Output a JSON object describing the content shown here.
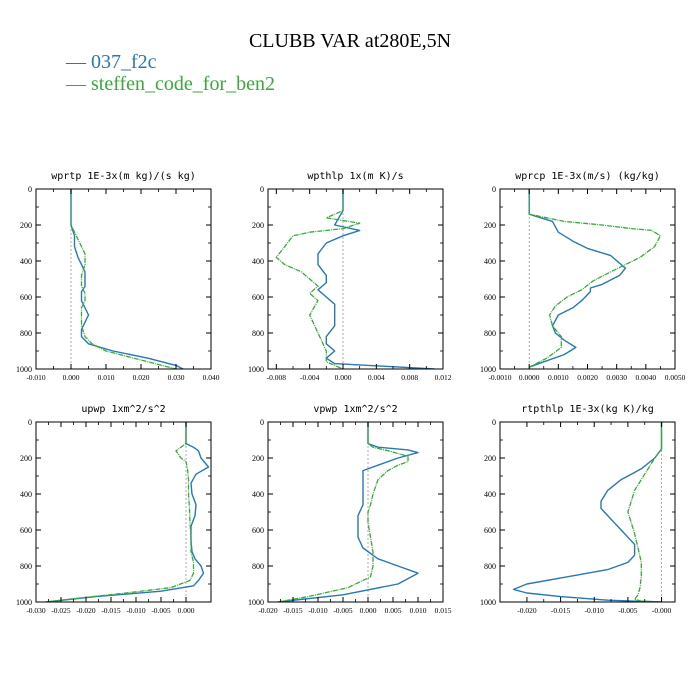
{
  "figure": {
    "title": "CLUBB VAR at280E,5N",
    "legend": [
      {
        "label": "037_f2c",
        "color": "#2878b4"
      },
      {
        "label": "steffen_code_for_ben2",
        "color": "#3aa83a"
      }
    ]
  },
  "chart_data": [
    {
      "type": "line",
      "title": "wprtp  1E-3x(m kg)/(s kg)",
      "xlim": [
        -0.01,
        0.04
      ],
      "ylim": [
        1000,
        0
      ],
      "xticks": [
        "-0.010",
        "0.000",
        "0.010",
        "0.020",
        "0.030",
        "0.040"
      ],
      "xtick_values": [
        -0.01,
        0.0,
        0.01,
        0.02,
        0.03,
        0.04
      ],
      "yticks": [
        0,
        200,
        400,
        600,
        800,
        1000
      ],
      "series": [
        {
          "name": "037_f2c",
          "color": "#2878b4",
          "x": [
            0.0,
            0.0,
            0.0,
            0.001,
            0.001,
            0.002,
            0.003,
            0.004,
            0.004,
            0.004,
            0.003,
            0.003,
            0.004,
            0.005,
            0.004,
            0.003,
            0.003,
            0.005,
            0.012,
            0.022,
            0.03,
            0.032
          ],
          "y": [
            0,
            140,
            200,
            260,
            320,
            380,
            420,
            460,
            500,
            540,
            570,
            620,
            660,
            700,
            740,
            780,
            820,
            860,
            900,
            940,
            980,
            1000
          ]
        },
        {
          "name": "steffen_code_for_ben2",
          "color": "#3aa83a",
          "x": [
            0.0,
            0.0,
            0.0,
            0.001,
            0.002,
            0.003,
            0.004,
            0.004,
            0.003,
            0.003,
            0.004,
            0.004,
            0.003,
            0.003,
            0.003,
            0.004,
            0.006,
            0.01,
            0.018,
            0.026,
            0.03
          ],
          "y": [
            0,
            140,
            200,
            240,
            280,
            320,
            360,
            420,
            480,
            540,
            580,
            620,
            660,
            700,
            760,
            820,
            860,
            900,
            940,
            980,
            1000
          ]
        }
      ]
    },
    {
      "type": "line",
      "title": "wpthlp  1x(m K)/s",
      "xlim": [
        -0.009,
        0.012
      ],
      "ylim": [
        1000,
        0
      ],
      "xticks": [
        "-0.008",
        "-0.004",
        "0.000",
        "0.004",
        "0.008",
        "0.012"
      ],
      "xtick_values": [
        -0.008,
        -0.004,
        0.0,
        0.004,
        0.008,
        0.012
      ],
      "yticks": [
        0,
        200,
        400,
        600,
        800,
        1000
      ],
      "series": [
        {
          "name": "037_f2c",
          "color": "#2878b4",
          "x": [
            0.0,
            0.0,
            0.0,
            -0.0005,
            -0.001,
            0.002,
            0.0,
            -0.002,
            -0.003,
            -0.003,
            -0.002,
            -0.002,
            -0.003,
            -0.002,
            -0.001,
            -0.001,
            -0.001,
            -0.002,
            -0.002,
            -0.001,
            -0.002,
            -0.001,
            0.011
          ],
          "y": [
            0,
            100,
            120,
            160,
            200,
            230,
            260,
            300,
            360,
            420,
            480,
            520,
            560,
            600,
            640,
            700,
            760,
            820,
            860,
            900,
            940,
            970,
            1000
          ]
        },
        {
          "name": "steffen_code_for_ben2",
          "color": "#3aa83a",
          "x": [
            0.0,
            0.0,
            -0.001,
            -0.002,
            0.0,
            0.002,
            0.0,
            -0.004,
            -0.006,
            -0.007,
            -0.008,
            -0.007,
            -0.005,
            -0.004,
            -0.003,
            -0.004,
            -0.003,
            -0.004,
            -0.003,
            -0.002,
            -0.002,
            0.0
          ],
          "y": [
            0,
            120,
            140,
            160,
            175,
            190,
            220,
            240,
            260,
            320,
            380,
            420,
            460,
            500,
            540,
            580,
            620,
            700,
            800,
            900,
            960,
            1000
          ]
        }
      ]
    },
    {
      "type": "line",
      "title": "wprcp  1E-3x(m/s) (kg/kg)",
      "xlim": [
        -0.001,
        0.005
      ],
      "ylim": [
        1000,
        0
      ],
      "xticks": [
        "-0.0010",
        "0.0000",
        "0.0010",
        "0.0020",
        "0.0030",
        "0.0040",
        "0.0050"
      ],
      "xtick_values": [
        -0.001,
        0.0,
        0.001,
        0.002,
        0.003,
        0.004,
        0.005
      ],
      "yticks": [
        0,
        200,
        400,
        600,
        800,
        1000
      ],
      "series": [
        {
          "name": "037_f2c",
          "color": "#2878b4",
          "x": [
            0.0,
            0.0,
            0.0,
            0.0008,
            0.001,
            0.0015,
            0.002,
            0.0028,
            0.0033,
            0.0031,
            0.0025,
            0.0021,
            0.0021,
            0.0018,
            0.0015,
            0.001,
            0.0008,
            0.0009,
            0.0012,
            0.0016,
            0.0012,
            0.0005,
            0.0
          ],
          "y": [
            0,
            100,
            140,
            180,
            240,
            290,
            330,
            370,
            440,
            480,
            530,
            550,
            570,
            620,
            660,
            700,
            760,
            800,
            840,
            880,
            920,
            960,
            990
          ]
        },
        {
          "name": "steffen_code_for_ben2",
          "color": "#3aa83a",
          "x": [
            0.0,
            0.0,
            0.0,
            0.0012,
            0.0025,
            0.0035,
            0.0042,
            0.0045,
            0.0043,
            0.0038,
            0.0033,
            0.0028,
            0.0022,
            0.0018,
            0.0013,
            0.0009,
            0.0007,
            0.0008,
            0.0011,
            0.0011,
            0.0006,
            0.0
          ],
          "y": [
            0,
            100,
            140,
            180,
            200,
            220,
            230,
            260,
            320,
            380,
            420,
            460,
            510,
            560,
            600,
            650,
            700,
            760,
            820,
            880,
            940,
            990
          ]
        }
      ]
    },
    {
      "type": "line",
      "title": "upwp  1xm^2/s^2",
      "xlim": [
        -0.03,
        0.005
      ],
      "ylim": [
        1000,
        0
      ],
      "xticks": [
        "-0.030",
        "-0.025",
        "-0.020",
        "-0.015",
        "-0.010",
        "-0.005",
        "0.000"
      ],
      "xtick_values": [
        -0.03,
        -0.025,
        -0.02,
        -0.015,
        -0.01,
        -0.005,
        0.0
      ],
      "yticks": [
        0,
        200,
        400,
        600,
        800,
        1000
      ],
      "series": [
        {
          "name": "037_f2c",
          "color": "#2878b4",
          "x": [
            0.0,
            0.0,
            0.0015,
            0.0025,
            0.003,
            0.0045,
            0.002,
            0.001,
            0.0012,
            0.002,
            0.0018,
            0.001,
            0.001,
            0.0012,
            0.0018,
            0.003,
            0.0035,
            0.0025,
            0.0015,
            -0.005,
            -0.018,
            -0.028
          ],
          "y": [
            0,
            120,
            140,
            160,
            200,
            250,
            290,
            340,
            400,
            460,
            520,
            580,
            660,
            720,
            760,
            800,
            840,
            880,
            910,
            940,
            970,
            1000
          ]
        },
        {
          "name": "steffen_code_for_ben2",
          "color": "#3aa83a",
          "x": [
            0.0,
            0.0,
            -0.001,
            -0.002,
            -0.001,
            0.0,
            0.0003,
            0.0005,
            0.0005,
            0.0007,
            0.0008,
            0.001,
            0.001,
            0.0015,
            0.0015,
            0.0008,
            -0.003,
            -0.012,
            -0.022,
            -0.028
          ],
          "y": [
            0,
            120,
            140,
            160,
            200,
            220,
            260,
            320,
            400,
            480,
            560,
            640,
            720,
            780,
            840,
            880,
            920,
            950,
            980,
            1000
          ]
        }
      ]
    },
    {
      "type": "line",
      "title": "vpwp  1xm^2/s^2",
      "xlim": [
        -0.02,
        0.015
      ],
      "ylim": [
        1000,
        0
      ],
      "xticks": [
        "-0.020",
        "-0.015",
        "-0.010",
        "-0.005",
        "0.000",
        "0.005",
        "0.010",
        "0.015"
      ],
      "xtick_values": [
        -0.02,
        -0.015,
        -0.01,
        -0.005,
        0.0,
        0.005,
        0.01,
        0.015
      ],
      "yticks": [
        0,
        200,
        400,
        600,
        800,
        1000
      ],
      "series": [
        {
          "name": "037_f2c",
          "color": "#2878b4",
          "x": [
            0.0,
            0.0,
            0.002,
            0.008,
            0.01,
            0.006,
            0.002,
            -0.001,
            -0.001,
            -0.001,
            -0.001,
            -0.002,
            -0.002,
            -0.002,
            -0.001,
            0.002,
            0.006,
            0.01,
            0.006,
            -0.005,
            -0.018
          ],
          "y": [
            0,
            120,
            140,
            155,
            170,
            200,
            240,
            270,
            330,
            400,
            460,
            520,
            580,
            640,
            700,
            760,
            800,
            840,
            900,
            960,
            1000
          ]
        },
        {
          "name": "steffen_code_for_ben2",
          "color": "#3aa83a",
          "x": [
            0.0,
            0.0,
            0.001,
            0.004,
            0.008,
            0.008,
            0.006,
            0.004,
            0.002,
            0.001,
            0.0005,
            0.0,
            0.0,
            0.0005,
            0.001,
            0.001,
            0.0005,
            -0.004,
            -0.012,
            -0.018
          ],
          "y": [
            0,
            120,
            140,
            160,
            190,
            220,
            240,
            270,
            320,
            400,
            460,
            500,
            560,
            640,
            720,
            800,
            860,
            920,
            970,
            1000
          ]
        }
      ]
    },
    {
      "type": "line",
      "title": "rtpthlp  1E-3x(kg K)/kg",
      "xlim": [
        -0.024,
        0.002
      ],
      "ylim": [
        1000,
        0
      ],
      "xticks": [
        "-0.020",
        "-0.015",
        "-0.010",
        "-0.005",
        "-0.000"
      ],
      "xtick_values": [
        -0.02,
        -0.015,
        -0.01,
        -0.005,
        0.0
      ],
      "yticks": [
        0,
        200,
        400,
        600,
        800,
        1000
      ],
      "series": [
        {
          "name": "037_f2c",
          "color": "#2878b4",
          "x": [
            0.0,
            0.0,
            0.0,
            -0.001,
            -0.003,
            -0.006,
            -0.008,
            -0.009,
            -0.009,
            -0.008,
            -0.007,
            -0.006,
            -0.005,
            -0.004,
            -0.004,
            -0.005,
            -0.008,
            -0.014,
            -0.02,
            -0.022,
            -0.02,
            -0.015,
            -0.008,
            0.0
          ],
          "y": [
            0,
            100,
            150,
            200,
            260,
            320,
            380,
            440,
            480,
            520,
            560,
            600,
            640,
            680,
            740,
            780,
            820,
            860,
            900,
            930,
            950,
            970,
            990,
            1000
          ]
        },
        {
          "name": "steffen_code_for_ben2",
          "color": "#3aa83a",
          "x": [
            0.0,
            0.0,
            0.0,
            -0.001,
            -0.002,
            -0.003,
            -0.004,
            -0.0045,
            -0.005,
            -0.0045,
            -0.004,
            -0.0035,
            -0.003,
            -0.003,
            -0.0032,
            -0.0035,
            -0.004,
            -0.003,
            0.0
          ],
          "y": [
            0,
            100,
            150,
            200,
            260,
            320,
            380,
            440,
            500,
            560,
            620,
            700,
            780,
            860,
            920,
            960,
            985,
            995,
            1000
          ]
        }
      ]
    }
  ]
}
